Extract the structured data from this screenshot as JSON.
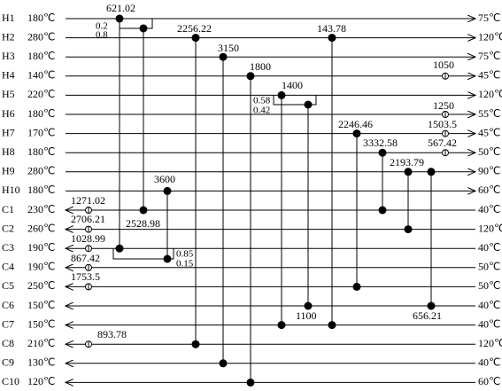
{
  "streams": [
    {
      "name": "H1",
      "left": "180℃",
      "right": "75℃"
    },
    {
      "name": "H2",
      "left": "280℃",
      "right": "120℃"
    },
    {
      "name": "H3",
      "left": "180℃",
      "right": "75℃"
    },
    {
      "name": "H4",
      "left": "140℃",
      "right": "45℃"
    },
    {
      "name": "H5",
      "left": "220℃",
      "right": "120℃"
    },
    {
      "name": "H6",
      "left": "180℃",
      "right": "55℃"
    },
    {
      "name": "H7",
      "left": "170℃",
      "right": "45℃"
    },
    {
      "name": "H8",
      "left": "180℃",
      "right": "50℃"
    },
    {
      "name": "H9",
      "left": "280℃",
      "right": "90℃"
    },
    {
      "name": "H10",
      "left": "180℃",
      "right": "60℃"
    },
    {
      "name": "C1",
      "left": "230℃",
      "right": "40℃"
    },
    {
      "name": "C2",
      "left": "260℃",
      "right": "120℃"
    },
    {
      "name": "C3",
      "left": "190℃",
      "right": "40℃"
    },
    {
      "name": "C4",
      "left": "190℃",
      "right": "50℃"
    },
    {
      "name": "C5",
      "left": "250℃",
      "right": "50℃"
    },
    {
      "name": "C6",
      "left": "150℃",
      "right": "40℃"
    },
    {
      "name": "C7",
      "left": "150℃",
      "right": "40℃"
    },
    {
      "name": "C8",
      "left": "210℃",
      "right": "120℃"
    },
    {
      "name": "C9",
      "left": "130℃",
      "right": "40℃"
    },
    {
      "name": "C10",
      "left": "120℃",
      "right": "60℃"
    }
  ],
  "exchangers": [
    {
      "duty": "621.02"
    },
    {
      "duty": "2528.98"
    },
    {
      "duty": "2256.22"
    },
    {
      "duty": "3150"
    },
    {
      "duty": "1800"
    },
    {
      "duty": "1400"
    },
    {
      "duty": "1100"
    },
    {
      "duty": "143.78"
    },
    {
      "duty": "3600"
    },
    {
      "duty": "2246.46"
    },
    {
      "duty": "3332.58"
    },
    {
      "duty": "2193.79"
    },
    {
      "duty": "656.21"
    }
  ],
  "splits": [
    {
      "fractions": [
        "0.2",
        "0.8"
      ]
    },
    {
      "fractions": [
        "0.58",
        "0.42"
      ]
    },
    {
      "fractions": [
        "0.85",
        "0.15"
      ]
    }
  ],
  "utilities": [
    {
      "duty": "1050"
    },
    {
      "duty": "1250"
    },
    {
      "duty": "1503.5"
    },
    {
      "duty": "567.42"
    },
    {
      "duty": "1271.02"
    },
    {
      "duty": "2706.21"
    },
    {
      "duty": "1028.99"
    },
    {
      "duty": "867.42"
    },
    {
      "duty": "1753.5"
    },
    {
      "duty": "893.78"
    }
  ]
}
